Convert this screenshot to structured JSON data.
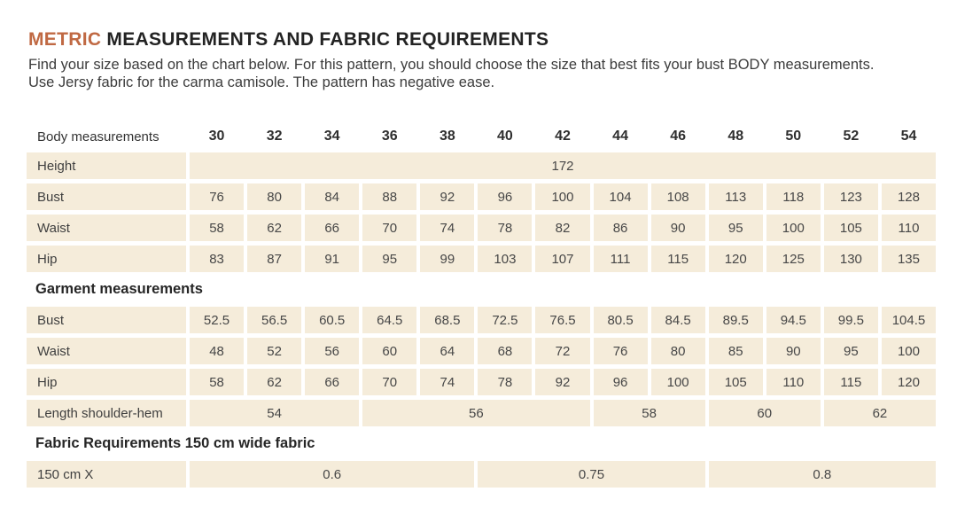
{
  "header": {
    "title_accent": "METRIC",
    "title_rest": " MEASUREMENTS AND FABRIC REQUIREMENTS",
    "intro_line1": "Find your size based on the chart below. For this pattern, you should choose the size that best fits your bust BODY measurements.",
    "intro_line2": "Use Jersy fabric for the carma camisole. The pattern has negative ease."
  },
  "colors": {
    "accent": "#c06943",
    "cell_bg": "#f5ecda",
    "title": "#232323",
    "text_body": "#3b3b3b"
  },
  "table": {
    "size_header_label": "Body measurements",
    "sizes": [
      "30",
      "32",
      "34",
      "36",
      "38",
      "40",
      "42",
      "44",
      "46",
      "48",
      "50",
      "52",
      "54"
    ],
    "body_rows": [
      {
        "label": "Height",
        "span_value": "172"
      },
      {
        "label": "Bust",
        "values": [
          "76",
          "80",
          "84",
          "88",
          "92",
          "96",
          "100",
          "104",
          "108",
          "113",
          "118",
          "123",
          "128"
        ]
      },
      {
        "label": "Waist",
        "values": [
          "58",
          "62",
          "66",
          "70",
          "74",
          "78",
          "82",
          "86",
          "90",
          "95",
          "100",
          "105",
          "110"
        ]
      },
      {
        "label": "Hip",
        "values": [
          "83",
          "87",
          "91",
          "95",
          "99",
          "103",
          "107",
          "111",
          "115",
          "120",
          "125",
          "130",
          "135"
        ]
      }
    ],
    "garment_heading": "Garment measurements",
    "garment_rows": [
      {
        "label": "Bust",
        "values": [
          "52.5",
          "56.5",
          "60.5",
          "64.5",
          "68.5",
          "72.5",
          "76.5",
          "80.5",
          "84.5",
          "89.5",
          "94.5",
          "99.5",
          "104.5"
        ]
      },
      {
        "label": "Waist",
        "values": [
          "48",
          "52",
          "56",
          "60",
          "64",
          "68",
          "72",
          "76",
          "80",
          "85",
          "90",
          "95",
          "100"
        ]
      },
      {
        "label": "Hip",
        "values": [
          "58",
          "62",
          "66",
          "70",
          "74",
          "78",
          "92",
          "96",
          "100",
          "105",
          "110",
          "115",
          "120"
        ]
      },
      {
        "label": "Length shoulder-hem",
        "spans": [
          {
            "value": "54",
            "cols": 3
          },
          {
            "value": "56",
            "cols": 4
          },
          {
            "value": "58",
            "cols": 2
          },
          {
            "value": "60",
            "cols": 2
          },
          {
            "value": "62",
            "cols": 2
          }
        ]
      }
    ],
    "fabric_heading": "Fabric Requirements 150 cm wide fabric",
    "fabric_row": {
      "label": "150 cm X",
      "spans": [
        {
          "value": "0.6",
          "cols": 5
        },
        {
          "value": "0.75",
          "cols": 4
        },
        {
          "value": "0.8",
          "cols": 4
        }
      ]
    }
  }
}
